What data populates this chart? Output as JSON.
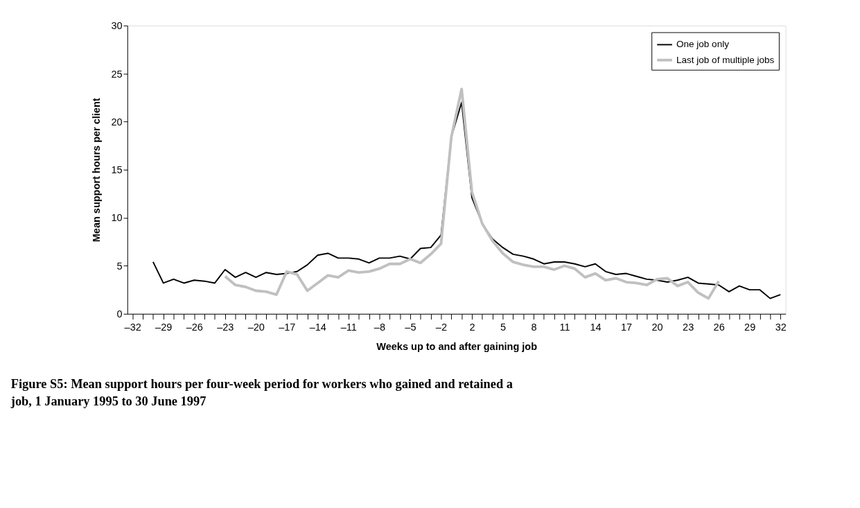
{
  "chart_data": {
    "type": "line",
    "title": "Figure S5: Mean support hours per four-week period for workers who gained and retained a job, 1 January 1995 to 30 June 1997",
    "xlabel": "Weeks up to and after gaining job",
    "ylabel": "Mean support hours per client",
    "categories": [
      "–32",
      null,
      null,
      "–29",
      null,
      null,
      "–26",
      null,
      null,
      "–23",
      null,
      null,
      "–20",
      null,
      null,
      "–17",
      null,
      null,
      "–14",
      null,
      null,
      "–11",
      null,
      null,
      "–8",
      null,
      null,
      "–5",
      null,
      null,
      "–2",
      null,
      null,
      "2",
      null,
      null,
      "5",
      null,
      null,
      "8",
      null,
      null,
      "11",
      null,
      null,
      "14",
      null,
      null,
      "17",
      null,
      null,
      "20",
      null,
      null,
      "23",
      null,
      null,
      "26",
      null,
      null,
      "29",
      null,
      null,
      "32"
    ],
    "series": [
      {
        "name": "One job only",
        "color": "#000000",
        "values": [
          null,
          null,
          5.4,
          3.2,
          3.6,
          3.2,
          3.5,
          3.4,
          3.2,
          4.6,
          3.8,
          4.3,
          3.8,
          4.3,
          4.1,
          4.2,
          4.4,
          5.1,
          6.1,
          6.3,
          5.8,
          5.8,
          5.7,
          5.3,
          5.8,
          5.8,
          6.0,
          5.7,
          6.8,
          6.9,
          8.2,
          18.4,
          22.0,
          12.1,
          9.4,
          7.8,
          6.9,
          6.2,
          6.0,
          5.7,
          5.2,
          5.4,
          5.4,
          5.2,
          4.9,
          5.2,
          4.4,
          4.1,
          4.2,
          3.9,
          3.6,
          3.5,
          3.3,
          3.5,
          3.8,
          3.2,
          3.1,
          3.0,
          2.3,
          2.9,
          2.5,
          2.5,
          1.6,
          2.0
        ]
      },
      {
        "name": "Last job of multiple jobs",
        "color": "#c0c0c0",
        "values": [
          null,
          null,
          null,
          null,
          null,
          null,
          null,
          null,
          null,
          3.9,
          3.0,
          2.8,
          2.4,
          2.3,
          2.0,
          4.4,
          4.1,
          2.4,
          3.2,
          4.0,
          3.8,
          4.5,
          4.3,
          4.4,
          4.7,
          5.2,
          5.2,
          5.7,
          5.3,
          6.2,
          7.3,
          18.4,
          23.4,
          12.7,
          9.4,
          7.6,
          6.3,
          5.4,
          5.1,
          4.9,
          4.9,
          4.6,
          5.0,
          4.7,
          3.8,
          4.2,
          3.5,
          3.7,
          3.3,
          3.2,
          3.0,
          3.6,
          3.7,
          2.9,
          3.3,
          2.2,
          1.6,
          3.4,
          null,
          null,
          null,
          null,
          null,
          null
        ]
      }
    ],
    "ylim": [
      0,
      30
    ],
    "yticks": [
      0,
      5,
      10,
      15,
      20,
      25,
      30
    ],
    "grid": false,
    "legend": "top right",
    "marker": "none",
    "line_style": "solid"
  }
}
